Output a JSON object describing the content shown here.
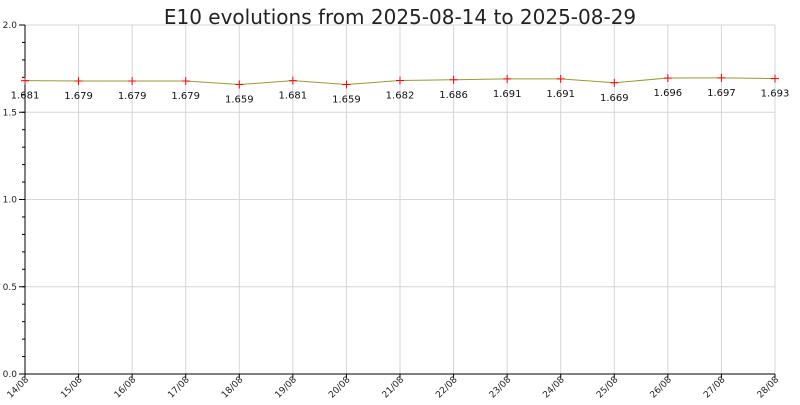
{
  "chart_data": {
    "type": "line",
    "title": "E10 evolutions from 2025-08-14 to 2025-08-29",
    "xlabel": "",
    "ylabel": "",
    "categories": [
      "14/08",
      "15/08",
      "16/08",
      "17/08",
      "18/08",
      "19/08",
      "20/08",
      "21/08",
      "22/08",
      "23/08",
      "24/08",
      "25/08",
      "26/08",
      "27/08",
      "28/08"
    ],
    "series": [
      {
        "values": [
          1.681,
          1.679,
          1.679,
          1.679,
          1.659,
          1.681,
          1.659,
          1.682,
          1.686,
          1.691,
          1.691,
          1.669,
          1.696,
          1.697,
          1.693
        ],
        "labels": [
          "1.681",
          "1.679",
          "1.679",
          "1.679",
          "1.659",
          "1.681",
          "1.659",
          "1.682",
          "1.686",
          "1.691",
          "1.691",
          "1.669",
          "1.696",
          "1.697",
          "1.693"
        ]
      }
    ],
    "ylim": [
      0,
      2.0
    ],
    "yticks": [
      "0.0",
      "0.5",
      "1.0",
      "1.5",
      "2.0"
    ],
    "grid": true,
    "legend": "none",
    "colors": {
      "line": "#9a9a2e",
      "marker": "#ff0000",
      "grid": "#d6d6d6",
      "axis": "#000000"
    }
  }
}
